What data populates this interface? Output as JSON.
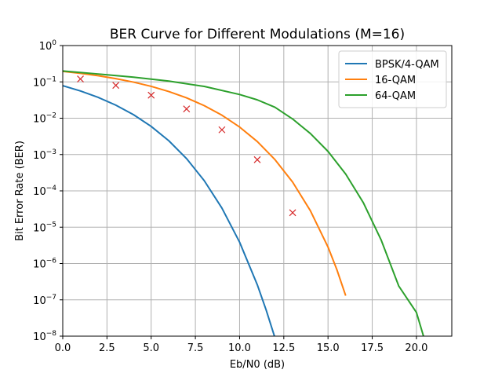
{
  "chart_data": {
    "type": "line",
    "title": "BER Curve for Different Modulations (M=16)",
    "xlabel": "Eb/N0 (dB)",
    "ylabel": "Bit Error Rate (BER)",
    "xlim": [
      0,
      22
    ],
    "ylim_exponents": [
      -8,
      0
    ],
    "y_scale": "log",
    "grid": true,
    "legend_position": "top-right",
    "x_ticks": [
      "0.0",
      "2.5",
      "5.0",
      "7.5",
      "10.0",
      "12.5",
      "15.0",
      "17.5",
      "20.0"
    ],
    "x_tick_values": [
      0,
      2.5,
      5,
      7.5,
      10,
      12.5,
      15,
      17.5,
      20
    ],
    "y_tick_exponents": [
      0,
      -1,
      -2,
      -3,
      -4,
      -5,
      -6,
      -7,
      -8
    ],
    "y_tick_base": "10",
    "series": [
      {
        "name": "BPSK/4-QAM",
        "color": "#1f77b4",
        "x": [
          0,
          1,
          2,
          3,
          4,
          5,
          6,
          7,
          8,
          9,
          10,
          11,
          11.5,
          12
        ],
        "y": [
          0.0786,
          0.0563,
          0.0375,
          0.0229,
          0.0125,
          0.00595,
          0.00239,
          0.000773,
          0.000191,
          3.36e-05,
          3.87e-06,
          2.61e-07,
          5.28e-08,
          9e-09
        ]
      },
      {
        "name": "16-QAM",
        "color": "#ff7f0e",
        "x": [
          0,
          1,
          2,
          3,
          4,
          5,
          6,
          7,
          8,
          9,
          10,
          11,
          12,
          13,
          14,
          15,
          15.5,
          16
        ],
        "y": [
          0.195,
          0.172,
          0.148,
          0.123,
          0.0985,
          0.0754,
          0.0542,
          0.0363,
          0.0222,
          0.0121,
          0.00572,
          0.00228,
          0.000725,
          0.000174,
          2.85e-05,
          2.84e-06,
          6.8e-07,
          1.3e-07
        ]
      },
      {
        "name": "64-QAM",
        "color": "#2ca02c",
        "x": [
          0,
          2,
          4,
          6,
          8,
          10,
          11,
          12,
          13,
          14,
          15,
          16,
          17,
          18,
          19,
          20,
          20.4
        ],
        "y": [
          0.2,
          0.165,
          0.135,
          0.105,
          0.075,
          0.045,
          0.032,
          0.02,
          0.0095,
          0.0038,
          0.00122,
          0.00029,
          4.7e-05,
          4.5e-06,
          2.4e-07,
          4.5e-08,
          1e-08
        ]
      }
    ],
    "markers": {
      "name": "",
      "symbol": "x",
      "color": "#d62728",
      "x": [
        1,
        3,
        5,
        7,
        9,
        11,
        13
      ],
      "y": [
        0.12,
        0.08,
        0.043,
        0.018,
        0.0048,
        0.00072,
        2.5e-05
      ]
    }
  }
}
